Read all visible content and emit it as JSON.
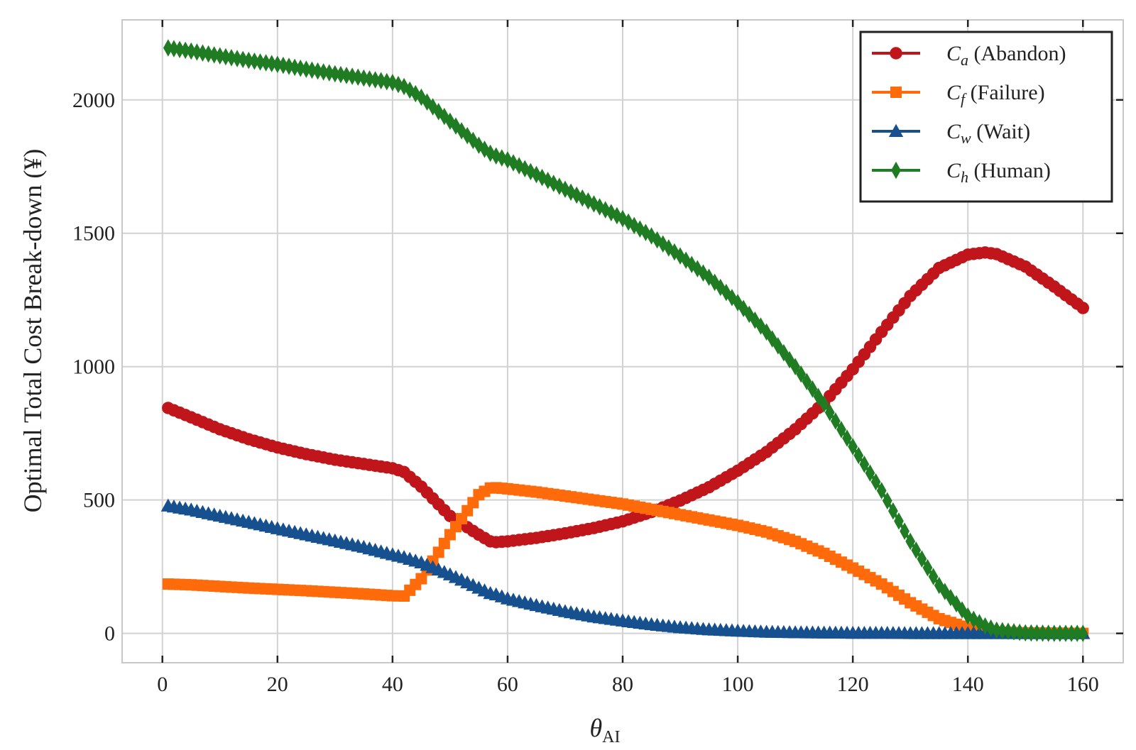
{
  "chart_data": {
    "type": "line",
    "xlabel": "θ_AI",
    "xlabel_main": "θ",
    "xlabel_sub": "AI",
    "ylabel": "Optimal Total Cost Break-down (¥)",
    "xlim": [
      -7,
      167
    ],
    "ylim": [
      -110,
      2300
    ],
    "x_ticks": [
      0,
      20,
      40,
      60,
      80,
      100,
      120,
      140,
      160
    ],
    "y_ticks": [
      0,
      500,
      1000,
      1500,
      2000
    ],
    "grid": true,
    "legend_position": "top-right",
    "x": [
      1,
      5,
      10,
      15,
      20,
      25,
      30,
      35,
      40,
      42,
      45,
      50,
      55,
      57,
      58,
      60,
      65,
      70,
      75,
      80,
      85,
      90,
      95,
      100,
      105,
      110,
      115,
      120,
      125,
      130,
      135,
      140,
      143,
      145,
      150,
      155,
      160
    ],
    "series": [
      {
        "name_main": "C",
        "name_sub": "a",
        "name_rest": " (Abandon)",
        "color": "#c0161b",
        "marker": "circle",
        "values": [
          845,
          810,
          765,
          728,
          697,
          672,
          651,
          635,
          619,
          605,
          550,
          440,
          370,
          345,
          342,
          345,
          358,
          375,
          395,
          420,
          455,
          498,
          548,
          610,
          680,
          765,
          865,
          990,
          1130,
          1265,
          1370,
          1420,
          1428,
          1422,
          1375,
          1300,
          1220
        ]
      },
      {
        "name_main": "C",
        "name_sub": "f",
        "name_rest": " (Failure)",
        "color": "#ff6b0b",
        "marker": "square",
        "values": [
          185,
          182,
          176,
          170,
          165,
          160,
          154,
          148,
          141,
          140,
          205,
          370,
          520,
          545,
          546,
          542,
          530,
          515,
          500,
          485,
          465,
          445,
          425,
          405,
          380,
          345,
          300,
          245,
          185,
          115,
          55,
          20,
          10,
          5,
          2,
          1,
          0
        ]
      },
      {
        "name_main": "C",
        "name_sub": "w",
        "name_rest": " (Wait)",
        "color": "#16508e",
        "marker": "triangle",
        "values": [
          478,
          463,
          440,
          417,
          393,
          370,
          347,
          323,
          295,
          285,
          265,
          220,
          170,
          150,
          145,
          130,
          105,
          82,
          62,
          47,
          33,
          22,
          14,
          9,
          5,
          3,
          2,
          1,
          1,
          0,
          0,
          0,
          0,
          0,
          0,
          0,
          0
        ]
      },
      {
        "name_main": "C",
        "name_sub": "h",
        "name_rest": " (Human)",
        "color": "#1f7c23",
        "marker": "diamond",
        "values": [
          2195,
          2183,
          2165,
          2148,
          2133,
          2115,
          2098,
          2082,
          2065,
          2050,
          2010,
          1920,
          1830,
          1800,
          1790,
          1775,
          1720,
          1665,
          1610,
          1555,
          1490,
          1415,
          1335,
          1240,
          1130,
          1000,
          860,
          700,
          535,
          345,
          180,
          65,
          28,
          12,
          2,
          0,
          0
        ]
      }
    ]
  }
}
